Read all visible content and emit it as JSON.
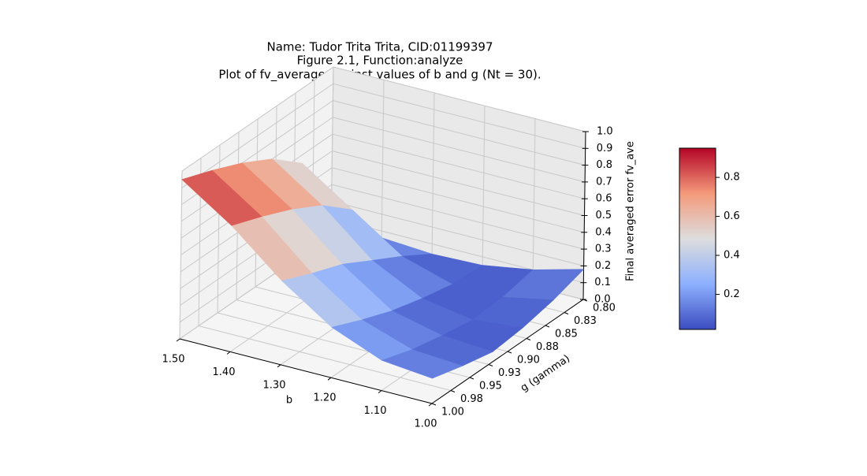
{
  "chart_data": {
    "type": "surface",
    "title": [
      "Name: Tudor Trita Trita, CID:01199397",
      "Figure 2.1, Function:analyze",
      "Plot of fv_average against values of b and g (Nt = 30)."
    ],
    "xlabel": "b",
    "ylabel": "g (gamma)",
    "zlabel": "Final averaged error fv_ave",
    "x": [
      1.5,
      1.4,
      1.3,
      1.2,
      1.1,
      1.0
    ],
    "y": [
      0.8,
      0.84,
      0.88,
      0.92,
      0.96,
      1.0
    ],
    "z": [
      [
        0.1,
        0.55,
        0.7,
        0.8,
        0.88,
        0.95
      ],
      [
        0.06,
        0.35,
        0.5,
        0.6,
        0.68,
        0.75
      ],
      [
        0.04,
        0.15,
        0.25,
        0.35,
        0.42,
        0.5
      ],
      [
        0.05,
        0.06,
        0.1,
        0.15,
        0.22,
        0.3
      ],
      [
        0.1,
        0.06,
        0.05,
        0.08,
        0.12,
        0.18
      ],
      [
        0.18,
        0.12,
        0.08,
        0.06,
        0.1,
        0.15
      ]
    ],
    "xlim": [
      1.5,
      1.0
    ],
    "ylim": [
      1.0,
      0.8
    ],
    "zlim": [
      0,
      1
    ],
    "xticks": [
      {
        "value": 1.5,
        "label": "1.50"
      },
      {
        "value": 1.4,
        "label": "1.40"
      },
      {
        "value": 1.3,
        "label": "1.30"
      },
      {
        "value": 1.2,
        "label": "1.20"
      },
      {
        "value": 1.1,
        "label": "1.10"
      },
      {
        "value": 1.0,
        "label": "1.00"
      }
    ],
    "yticks": [
      {
        "value": 1.0,
        "label": "1.00"
      },
      {
        "value": 0.975,
        "label": "0.98"
      },
      {
        "value": 0.95,
        "label": "0.95"
      },
      {
        "value": 0.925,
        "label": "0.93"
      },
      {
        "value": 0.9,
        "label": "0.90"
      },
      {
        "value": 0.875,
        "label": "0.88"
      },
      {
        "value": 0.85,
        "label": "0.85"
      },
      {
        "value": 0.825,
        "label": "0.83"
      },
      {
        "value": 0.8,
        "label": "0.80"
      }
    ],
    "zticks": [
      {
        "value": 0,
        "label": "0.0"
      },
      0.1,
      0.2,
      0.3,
      0.4,
      0.5,
      0.6,
      0.7,
      0.8,
      0.9,
      {
        "value": 1,
        "label": "1.0"
      }
    ],
    "colormap": "coolwarm",
    "colorbar": {
      "lim": [
        0.02,
        0.95
      ],
      "ticks": [
        0.2,
        0.4,
        0.6,
        0.8
      ]
    },
    "grid": true
  }
}
